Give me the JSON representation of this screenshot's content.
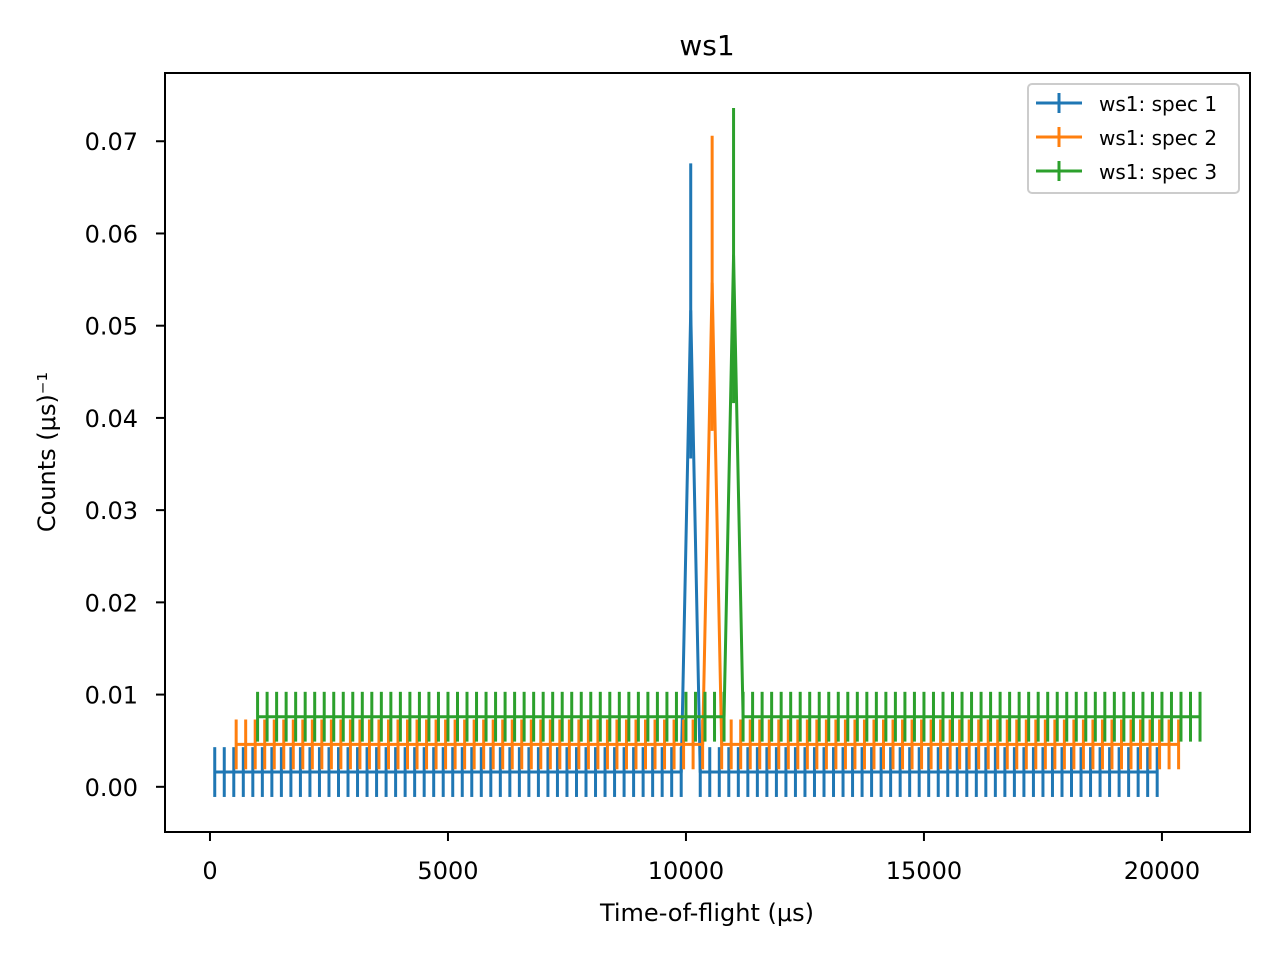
{
  "chart_data": {
    "type": "line",
    "subtype": "errorbar",
    "title": "ws1",
    "xlabel": "Time-of-flight (μs)",
    "ylabel": "Counts (μs)⁻¹",
    "xlim": [
      -945,
      21850
    ],
    "ylim": [
      -0.0049,
      0.0774
    ],
    "xticks": [
      0,
      5000,
      10000,
      15000,
      20000
    ],
    "xtick_labels": [
      "0",
      "5000",
      "10000",
      "15000",
      "20000"
    ],
    "yticks": [
      0.0,
      0.01,
      0.02,
      0.03,
      0.04,
      0.05,
      0.06,
      0.07
    ],
    "ytick_labels": [
      "0.00",
      "0.01",
      "0.02",
      "0.03",
      "0.04",
      "0.05",
      "0.06",
      "0.07"
    ],
    "grid": false,
    "legend_position": "top-right",
    "series": [
      {
        "name": "ws1: spec 1",
        "color": "#1f77b4",
        "x_start": 100,
        "x_step": 200,
        "n": 100,
        "baseline": 0.0016,
        "baseline_err": 0.0027,
        "peak_index": 50,
        "peak_value": 0.0516,
        "peak_err": 0.016
      },
      {
        "name": "ws1: spec 2",
        "color": "#ff7f0e",
        "x_start": 550,
        "x_step": 200,
        "n": 100,
        "baseline": 0.0046,
        "baseline_err": 0.0027,
        "peak_index": 50,
        "peak_value": 0.0546,
        "peak_err": 0.016
      },
      {
        "name": "ws1: spec 3",
        "color": "#2ca02c",
        "x_start": 1000,
        "x_step": 200,
        "n": 100,
        "baseline": 0.0076,
        "baseline_err": 0.0027,
        "peak_index": 50,
        "peak_value": 0.0576,
        "peak_err": 0.016
      }
    ]
  }
}
